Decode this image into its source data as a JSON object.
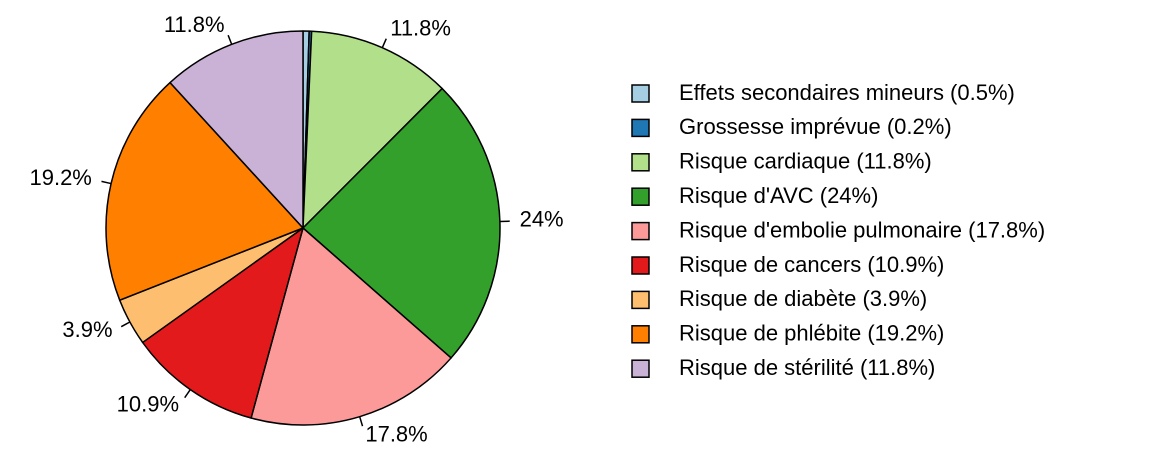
{
  "chart_data": {
    "type": "pie",
    "categories": [
      "Effets secondaires mineurs (0.5%)",
      "Grossesse imprévue (0.2%)",
      "Risque cardiaque (11.8%)",
      "Risque d'AVC (24%)",
      "Risque d'embolie pulmonaire (17.8%)",
      "Risque de cancers (10.9%)",
      "Risque de diabète (3.9%)",
      "Risque de phlébite (19.2%)",
      "Risque de stérilité (11.8%)"
    ],
    "values": [
      0.5,
      0.2,
      11.8,
      24,
      17.8,
      10.9,
      3.9,
      19.2,
      11.8
    ],
    "value_labels": [
      null,
      null,
      "11.8%",
      "24%",
      "17.8%",
      "10.9%",
      "3.9%",
      "19.2%",
      "11.8%"
    ],
    "colors": [
      "#a6cee3",
      "#1f78b4",
      "#b2df8a",
      "#33a02c",
      "#fb9a99",
      "#e31a1c",
      "#fdbf6f",
      "#ff7f00",
      "#cab2d6"
    ],
    "legend": "right"
  }
}
